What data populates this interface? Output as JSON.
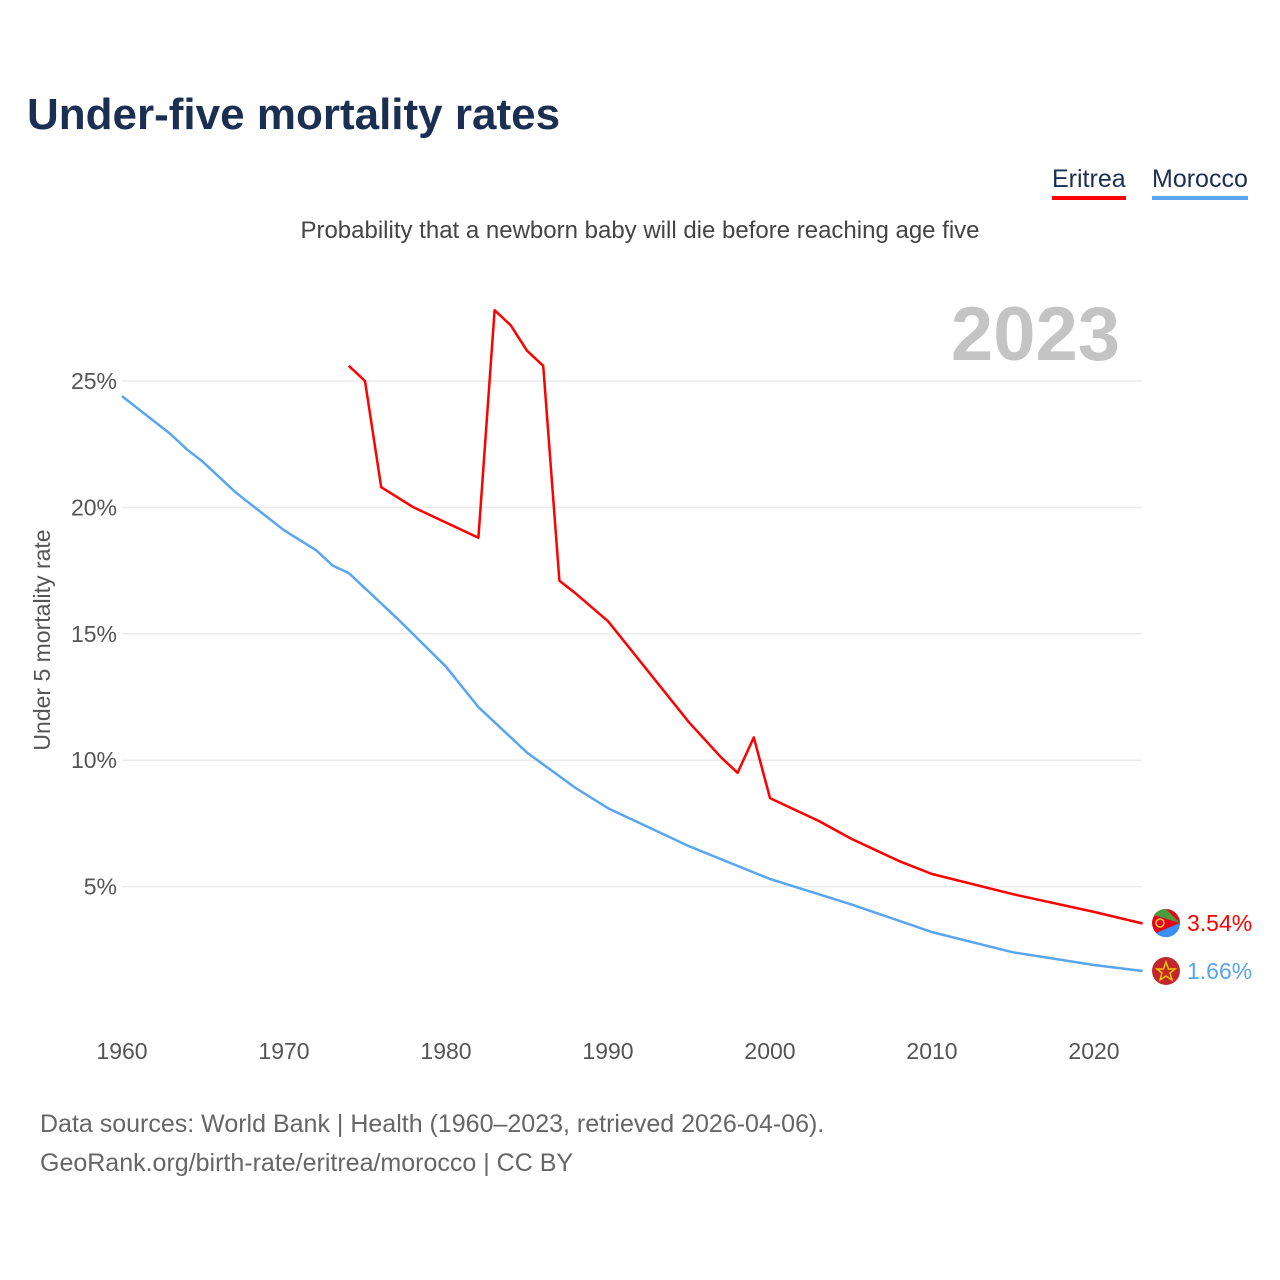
{
  "chart_data": {
    "type": "line",
    "title": "Under-five mortality rates",
    "subtitle": "Probability that a newborn baby will die before reaching age five",
    "ylabel": "Under 5 mortality rate",
    "xlabel": "",
    "year_label": "2023",
    "xlim": [
      1960,
      2023
    ],
    "ylim": [
      0,
      27.8
    ],
    "grid": true,
    "legend_placement": "top-right",
    "x_ticks": [
      1960,
      1970,
      1980,
      1990,
      2000,
      2010,
      2020
    ],
    "x_tick_labels": [
      "1960",
      "1970",
      "1980",
      "1990",
      "2000",
      "2010",
      "2020"
    ],
    "y_ticks": [
      5,
      10,
      15,
      20,
      25
    ],
    "y_tick_labels": [
      "5%",
      "10%",
      "15%",
      "20%",
      "25%"
    ],
    "series": [
      {
        "name": "Eritrea",
        "color": "#ff0000",
        "end_label": "3.54%",
        "x": [
          1974,
          1975,
          1976,
          1978,
          1982,
          1983,
          1984,
          1985,
          1986,
          1987,
          1988,
          1990,
          1991,
          1995,
          1997,
          1998,
          1999,
          2000,
          2001,
          2003,
          2005,
          2008,
          2010,
          2015,
          2020,
          2023
        ],
        "y": [
          25.6,
          25.0,
          20.8,
          20.0,
          18.8,
          27.8,
          27.2,
          26.2,
          25.6,
          17.1,
          16.6,
          15.5,
          14.7,
          11.5,
          10.1,
          9.5,
          10.9,
          8.5,
          8.2,
          7.6,
          6.9,
          6.0,
          5.5,
          4.7,
          4.0,
          3.54
        ]
      },
      {
        "name": "Morocco",
        "color": "#5aa5ef",
        "end_label": "1.66%",
        "x": [
          1960,
          1963,
          1964,
          1965,
          1967,
          1970,
          1972,
          1973,
          1974,
          1977,
          1980,
          1982,
          1985,
          1988,
          1990,
          1995,
          2000,
          2005,
          2010,
          2015,
          2020,
          2023
        ],
        "y": [
          24.4,
          22.9,
          22.3,
          21.8,
          20.6,
          19.1,
          18.3,
          17.7,
          17.4,
          15.6,
          13.7,
          12.1,
          10.3,
          8.9,
          8.1,
          6.6,
          5.3,
          4.3,
          3.2,
          2.4,
          1.9,
          1.66
        ]
      }
    ]
  },
  "source": {
    "line1": "Data sources: World Bank | Health (1960–2023, retrieved 2026-04-06).",
    "line2": "GeoRank.org/birth-rate/eritrea/morocco | CC BY"
  }
}
